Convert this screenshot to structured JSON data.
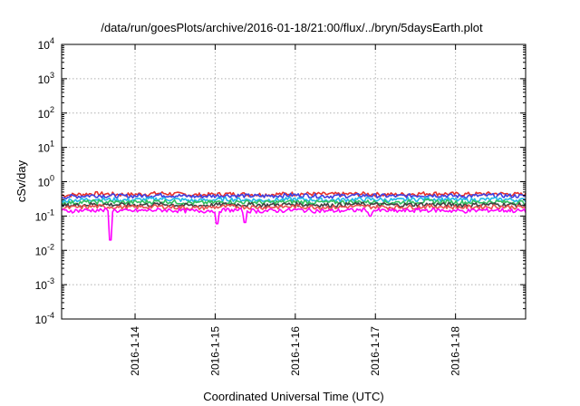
{
  "chart_data": {
    "type": "line",
    "title": "/data/run/goesPlots/archive/2016-01-18/21:00/flux/../bryn/5daysEarth.plot",
    "xlabel": "Coordinated Universal Time (UTC)",
    "ylabel": "cSv/day",
    "y_scale": "log",
    "ylim": [
      0.0001,
      10000
    ],
    "xlim": [
      "2016-01-13 02:00",
      "2016-01-18 21:00"
    ],
    "grid": true,
    "legend": "none",
    "x_ticks": [
      "2016-1-14",
      "2016-1-15",
      "2016-1-16",
      "2016-1-17",
      "2016-1-18"
    ],
    "y_ticks": [
      {
        "base": "10",
        "exp": "-4"
      },
      {
        "base": "10",
        "exp": "-3"
      },
      {
        "base": "10",
        "exp": "-2"
      },
      {
        "base": "10",
        "exp": "-1"
      },
      {
        "base": "10",
        "exp": "0"
      },
      {
        "base": "10",
        "exp": "1"
      },
      {
        "base": "10",
        "exp": "2"
      },
      {
        "base": "10",
        "exp": "3"
      },
      {
        "base": "10",
        "exp": "4"
      }
    ],
    "x": [
      "2016-01-13 02:00",
      "2016-01-13 12:00",
      "2016-01-13 22:00",
      "2016-01-14 08:00",
      "2016-01-14 18:00",
      "2016-01-15 04:00",
      "2016-01-15 14:00",
      "2016-01-16 00:00",
      "2016-01-16 10:00",
      "2016-01-16 20:00",
      "2016-01-17 06:00",
      "2016-01-17 16:00",
      "2016-01-18 02:00",
      "2016-01-18 12:00",
      "2016-01-18 21:00"
    ],
    "series": [
      {
        "color": "#e8302a",
        "values": [
          0.4,
          0.45,
          0.42,
          0.46,
          0.41,
          0.44,
          0.42,
          0.45,
          0.43,
          0.44,
          0.42,
          0.46,
          0.43,
          0.45,
          0.42
        ]
      },
      {
        "color": "#4040e0",
        "values": [
          0.36,
          0.4,
          0.38,
          0.41,
          0.37,
          0.4,
          0.38,
          0.41,
          0.38,
          0.4,
          0.38,
          0.41,
          0.38,
          0.4,
          0.38
        ]
      },
      {
        "color": "#20b8e8",
        "values": [
          0.28,
          0.31,
          0.29,
          0.32,
          0.28,
          0.31,
          0.29,
          0.31,
          0.29,
          0.31,
          0.29,
          0.32,
          0.29,
          0.31,
          0.29
        ]
      },
      {
        "color": "#30c060",
        "values": [
          0.24,
          0.26,
          0.25,
          0.27,
          0.24,
          0.26,
          0.25,
          0.26,
          0.25,
          0.26,
          0.25,
          0.27,
          0.25,
          0.26,
          0.25
        ]
      },
      {
        "color": "#404040",
        "values": [
          0.2,
          0.22,
          0.21,
          0.22,
          0.2,
          0.22,
          0.21,
          0.22,
          0.21,
          0.22,
          0.21,
          0.22,
          0.21,
          0.22,
          0.21
        ]
      },
      {
        "color": "#e85050",
        "values": [
          0.17,
          0.19,
          0.18,
          0.19,
          0.17,
          0.19,
          0.18,
          0.19,
          0.18,
          0.19,
          0.18,
          0.19,
          0.18,
          0.19,
          0.18
        ]
      },
      {
        "color": "#ff00ff",
        "values": [
          0.14,
          0.15,
          0.14,
          0.15,
          0.14,
          0.15,
          0.14,
          0.15,
          0.14,
          0.15,
          0.14,
          0.15,
          0.14,
          0.15,
          0.14
        ]
      }
    ],
    "dips": [
      {
        "x": "2016-01-13 16:30",
        "value": 0.02
      },
      {
        "x": "2016-01-15 00:30",
        "value": 0.06
      },
      {
        "x": "2016-01-15 09:00",
        "value": 0.065
      },
      {
        "x": "2016-01-16 22:30",
        "value": 0.1
      }
    ]
  }
}
